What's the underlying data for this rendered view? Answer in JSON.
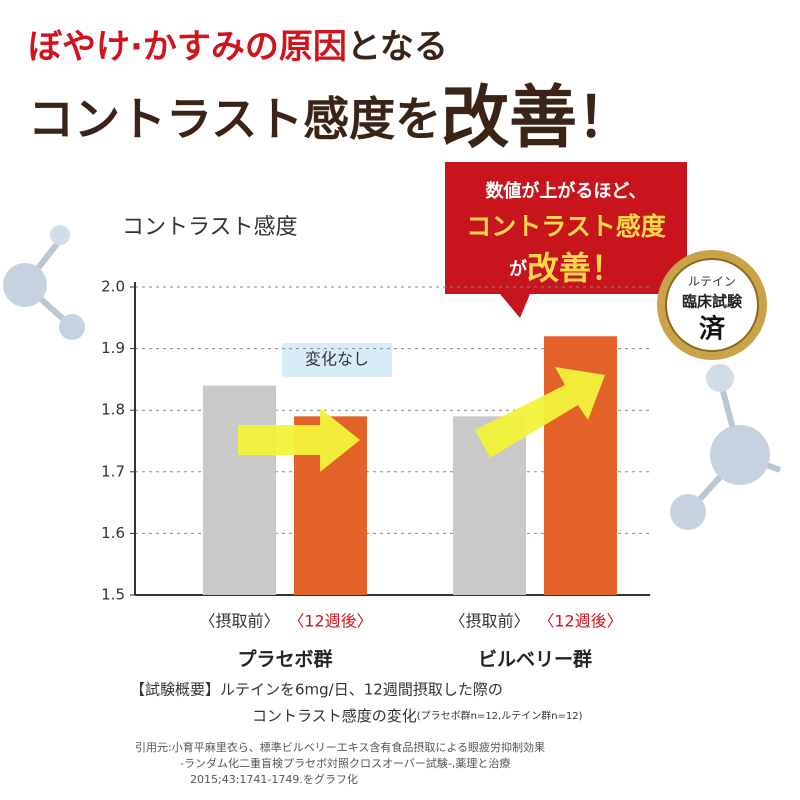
{
  "chart_data": {
    "type": "bar",
    "title": [
      "ぼやけ·かすみの原因",
      "となる"
    ],
    "subtitle": [
      "コントラスト感度を",
      "改善",
      "！"
    ],
    "y_axis_title": "コントラスト感度",
    "categories": [
      "プラセボ群",
      "ビルベリー群"
    ],
    "series": [
      {
        "name": "〈摂取前〉",
        "color": "#c9c9c9",
        "values": [
          1.84,
          1.79
        ]
      },
      {
        "name": "〈12週後〉",
        "color": "#e2622a",
        "values": [
          1.79,
          1.92
        ]
      }
    ],
    "ylim": [
      1.5,
      2.0
    ],
    "yticks": [
      {
        "value": 1.5,
        "label": "1.5"
      },
      {
        "value": 1.6,
        "label": "1.6"
      },
      {
        "value": 1.7,
        "label": "1.7"
      },
      {
        "value": 1.8,
        "label": "1.8"
      },
      {
        "value": 1.9,
        "label": "1.9"
      },
      {
        "value": 2.0,
        "label": "2.0"
      }
    ],
    "grid": true,
    "annotations": {
      "no_change": "変化なし",
      "callout": [
        "数値が上がるほど、",
        "コントラスト感度",
        "が",
        "改善！"
      ],
      "badge": [
        "ルテイン",
        "臨床試験",
        "済"
      ]
    },
    "notes": [
      "【試験概要】ルテインを6mg/日、12週間摂取した際の",
      "コントラスト感度の変化",
      "(プラセボ群n=12,ルテイン群n=12)"
    ],
    "citation": [
      "引用元:小育平麻里衣ら、標準ビルベリーエキス含有食品摂取による眼疲労抑制効果",
      "-ランダム化二重盲検プラセボ対照クロスオーバー試験-,薬理と治療",
      "2015;43:1741-1749.をグラフ化"
    ]
  }
}
